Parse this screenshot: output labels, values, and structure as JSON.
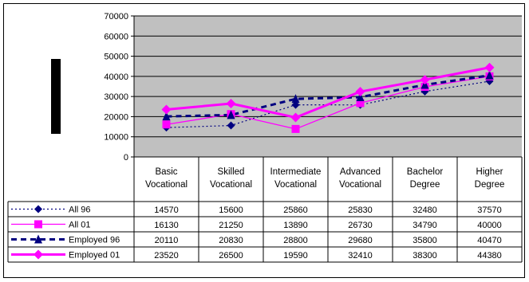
{
  "chart_data": {
    "type": "line",
    "title": "",
    "xlabel": "",
    "ylabel": "",
    "ylim": [
      0,
      70000
    ],
    "yticks": [
      0,
      10000,
      20000,
      30000,
      40000,
      50000,
      60000,
      70000
    ],
    "ytick_labels": [
      "0",
      "10000",
      "20000",
      "30000",
      "40000",
      "50000",
      "60000",
      "70000"
    ],
    "grid": true,
    "plot_background": "#c0c0c0",
    "legend": "data-table",
    "categories": [
      [
        "Basic",
        "Vocational"
      ],
      [
        "Skilled",
        "Vocational"
      ],
      [
        "Intermediate",
        "Vocational"
      ],
      [
        "Advanced",
        "Vocational"
      ],
      [
        "Bachelor",
        "Degree"
      ],
      [
        "Higher",
        "Degree"
      ]
    ],
    "series": [
      {
        "name": "All 96",
        "values": [
          14570,
          15600,
          25860,
          25830,
          32480,
          37570
        ],
        "color": "#000080",
        "marker": "diamond",
        "line": "dotted"
      },
      {
        "name": "All 01",
        "values": [
          16130,
          21250,
          13890,
          26730,
          34790,
          40000
        ],
        "color": "#ff00ff",
        "marker": "square",
        "line": "solid"
      },
      {
        "name": "Employed 96",
        "values": [
          20110,
          20830,
          28800,
          29680,
          35800,
          40470
        ],
        "color": "#000080",
        "marker": "triangle",
        "line": "dashed"
      },
      {
        "name": "Employed 01",
        "values": [
          23520,
          26500,
          19590,
          32410,
          38300,
          44380
        ],
        "color": "#ff00ff",
        "marker": "diamond",
        "line": "thick"
      }
    ],
    "table_rows": [
      [
        "14570",
        "15600",
        "25860",
        "25830",
        "32480",
        "37570"
      ],
      [
        "16130",
        "21250",
        "13890",
        "26730",
        "34790",
        "40000"
      ],
      [
        "20110",
        "20830",
        "28800",
        "29680",
        "35800",
        "40470"
      ],
      [
        "23520",
        "26500",
        "19590",
        "32410",
        "38300",
        "44380"
      ]
    ]
  }
}
